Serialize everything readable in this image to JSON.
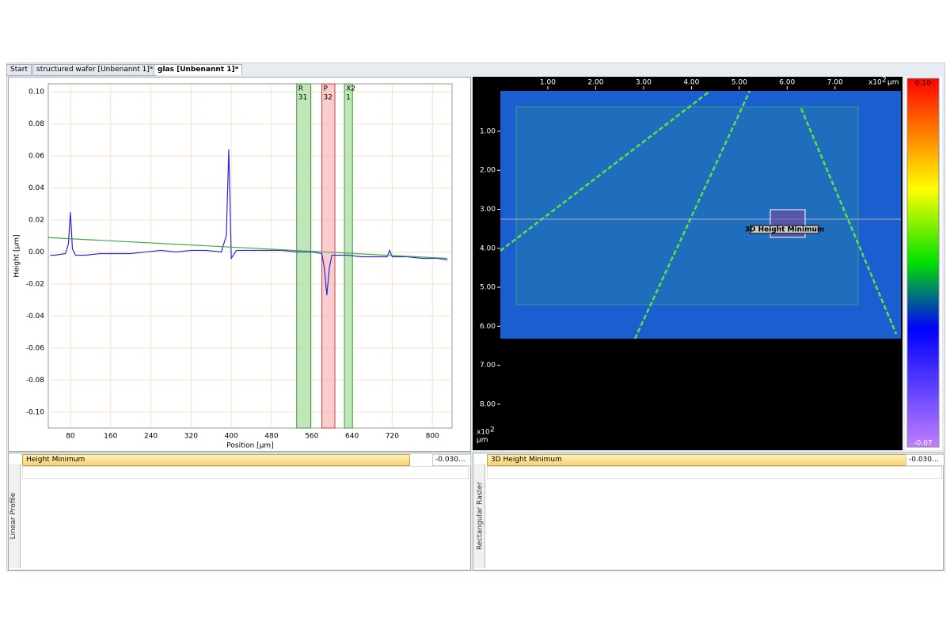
{
  "tabs": [
    "Start",
    "structured wafer [Unbenannt 1]*",
    "glas [Unbenannt 1]*"
  ],
  "chart_data": [
    {
      "type": "line",
      "xlabel": "Position [µm]",
      "ylabel": "Height [µm]",
      "xlim": [
        36,
        839
      ],
      "ylim": [
        -0.11,
        0.105
      ],
      "xticks": [
        80,
        160,
        240,
        320,
        400,
        480,
        560,
        640,
        720,
        800
      ],
      "yticks": [
        {
          "value": 0.1,
          "label": "0.10"
        },
        {
          "value": 0.08,
          "label": "0.08"
        },
        {
          "value": 0.06,
          "label": "0.06"
        },
        {
          "value": 0.04,
          "label": "0.04"
        },
        {
          "value": 0.02,
          "label": "0.02"
        },
        {
          "value": 0,
          "label": "0.00"
        },
        {
          "value": -0.02,
          "label": "-0.02"
        },
        {
          "value": -0.04,
          "label": "-0.04"
        },
        {
          "value": -0.06,
          "label": "-0.06"
        },
        {
          "value": -0.08,
          "label": "-0.08"
        },
        {
          "value": -0.1,
          "label": "-0.10"
        }
      ],
      "grid": true,
      "series": [
        {
          "color": "#2828d8",
          "x": [
            40,
            50,
            70,
            76,
            80,
            84,
            90,
            110,
            140,
            170,
            200,
            230,
            260,
            290,
            320,
            350,
            380,
            390,
            395,
            400,
            410,
            440,
            470,
            500,
            530,
            560,
            580,
            585,
            590,
            595,
            600,
            630,
            660,
            690,
            710,
            715,
            720,
            750,
            780,
            810,
            830
          ],
          "values": [
            -0.002,
            -0.002,
            -0.001,
            0.005,
            0.025,
            0.002,
            -0.002,
            -0.002,
            -0.001,
            -0.001,
            -0.001,
            0,
            0.001,
            0,
            0.001,
            0.001,
            0,
            0.01,
            0.064,
            -0.004,
            0.001,
            0.001,
            0.001,
            0.001,
            0,
            0,
            -0.001,
            -0.01,
            -0.027,
            -0.01,
            -0.002,
            -0.002,
            -0.003,
            -0.003,
            -0.003,
            0.001,
            -0.003,
            -0.003,
            -0.004,
            -0.004,
            -0.005
          ]
        },
        {
          "color": "#48a848",
          "x": [
            36,
            830
          ],
          "values": [
            0.009,
            -0.004
          ]
        }
      ],
      "bands": [
        {
          "label": "R",
          "number": 31,
          "color": "#a8dca0",
          "edge": "#3a9a3a",
          "xrange": [
            530,
            558
          ]
        },
        {
          "label": "P",
          "number": 32,
          "color": "#f6b8b8",
          "edge": "#d04040",
          "xrange": [
            580,
            606
          ]
        },
        {
          "label": "X2",
          "number": 1,
          "color": "#a8dca0",
          "edge": "#3a9a3a",
          "xrange": [
            625,
            641
          ]
        }
      ]
    },
    {
      "type": "heatmap",
      "xlim": [
        -0.57,
        8.41
      ],
      "ylim": [
        -0.4,
        9.18
      ],
      "xticks": [
        {
          "value": 1,
          "label": "1.00"
        },
        {
          "value": 2,
          "label": "2.00"
        },
        {
          "value": 3,
          "label": "3.00"
        },
        {
          "value": 4,
          "label": "4.00"
        },
        {
          "value": 5,
          "label": "5.00"
        },
        {
          "value": 6,
          "label": "6.00"
        },
        {
          "value": 7,
          "label": "7.00"
        }
      ],
      "yticks": [
        {
          "value": 1,
          "label": "1.00"
        },
        {
          "value": 2,
          "label": "2.00"
        },
        {
          "value": 3,
          "label": "3.00"
        },
        {
          "value": 4,
          "label": "4.00"
        },
        {
          "value": 5,
          "label": "5.00"
        },
        {
          "value": 6,
          "label": "6.00"
        },
        {
          "value": 7,
          "label": "7.00"
        },
        {
          "value": 8,
          "label": "8.00"
        }
      ],
      "axis_unit": {
        "base": "x10",
        "exponent": "2",
        "unit": "µm"
      },
      "colorbar": {
        "max": {
          "value": 0.1,
          "label": "0.10"
        },
        "min": {
          "value": -0.07,
          "label": "-0.07"
        }
      },
      "annotation": "3D Height Minimum"
    }
  ],
  "panels": [
    {
      "result": "Height Minimum",
      "value": "-0.030...",
      "side_label": "Linear Profile"
    },
    {
      "result": "3D Height Minimum",
      "value": "-0.030...",
      "side_label": "Rectangular Raster"
    }
  ]
}
